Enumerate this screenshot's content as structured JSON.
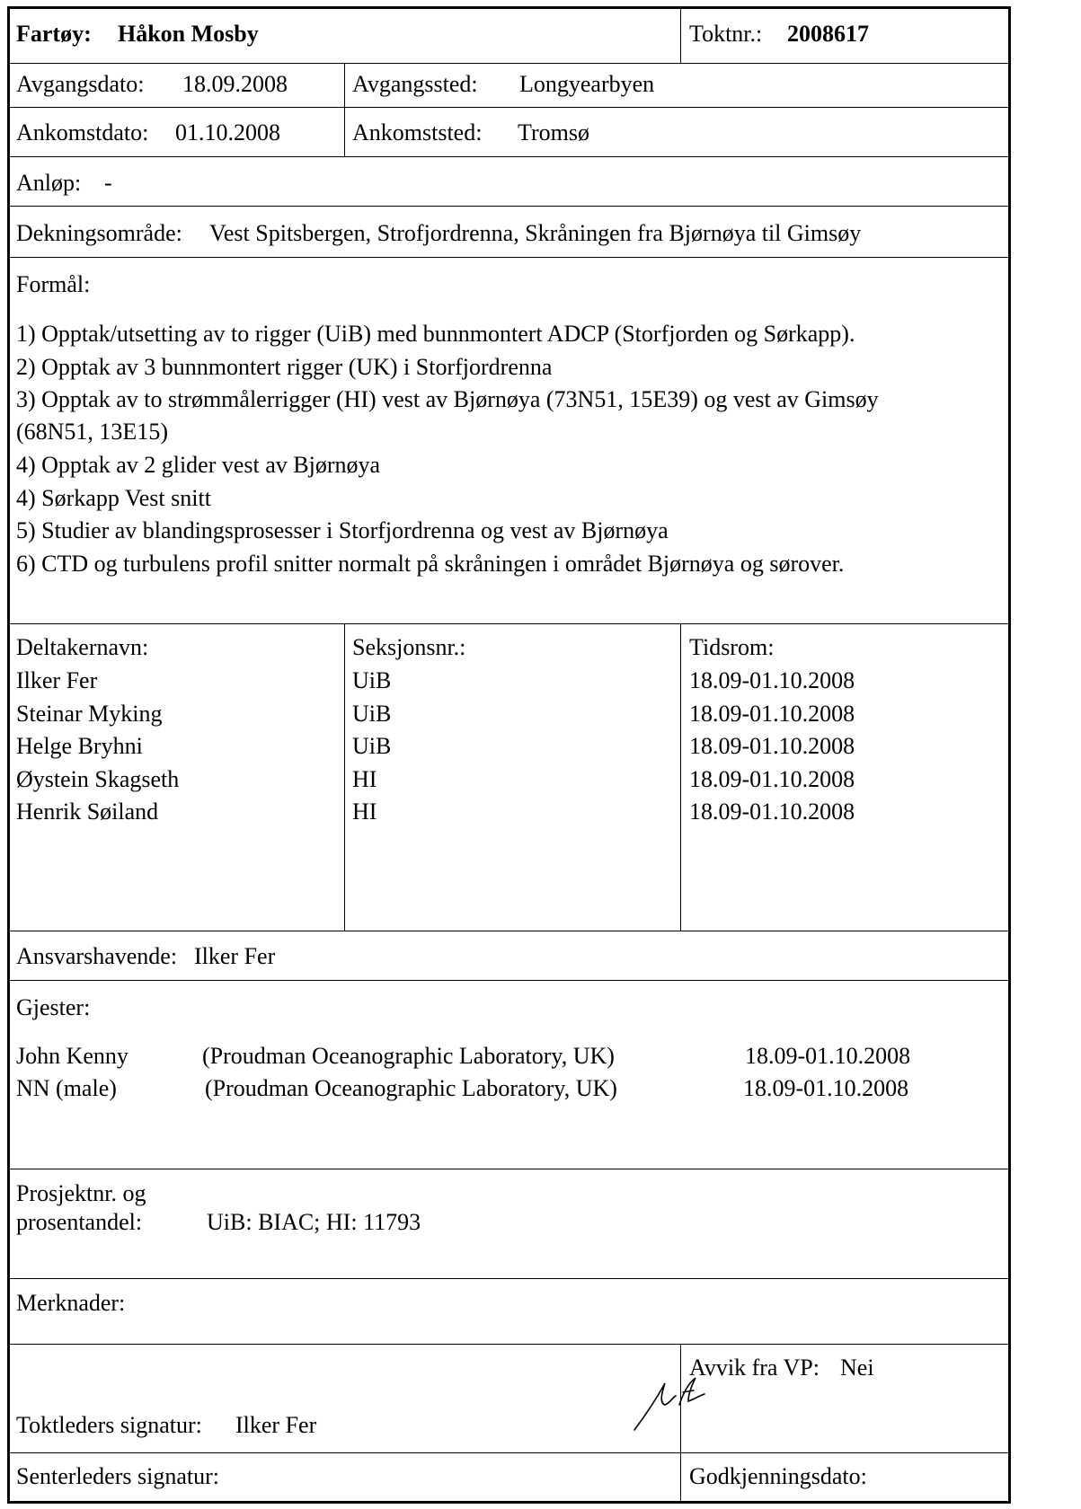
{
  "header": {
    "vessel_label": "Fartøy:",
    "vessel_name": "Håkon Mosby",
    "cruise_label": "Toktnr.:",
    "cruise_no": "2008617"
  },
  "departure": {
    "date_label": "Avgangsdato:",
    "date": "18.09.2008",
    "place_label": "Avgangssted:",
    "place": "Longyearbyen"
  },
  "arrival": {
    "date_label": "Ankomstdato:",
    "date": "01.10.2008",
    "place_label": "Ankomststed:",
    "place": "Tromsø"
  },
  "port_calls": {
    "label": "Anløp:",
    "value": "-"
  },
  "coverage": {
    "label": "Dekningsområde:",
    "value": "Vest Spitsbergen, Strofjordrenna, Skråningen fra Bjørnøya til Gimsøy"
  },
  "purpose": {
    "label": "Formål:",
    "lines": [
      "1) Opptak/utsetting av to rigger (UiB) med bunnmontert ADCP (Storfjorden og Sørkapp).",
      "2) Opptak av 3 bunnmontert rigger (UK) i Storfjordrenna",
      "3) Opptak av to strømmålerrigger (HI) vest av Bjørnøya (73N51, 15E39) og vest av Gimsøy",
      "(68N51, 13E15)",
      "4) Opptak av 2 glider vest av Bjørnøya",
      "4) Sørkapp Vest snitt",
      "5) Studier av blandingsprosesser i Storfjordrenna og vest av Bjørnøya",
      "6) CTD og turbulens profil snitter normalt på skråningen i området Bjørnøya og sørover."
    ]
  },
  "participants": {
    "headers": [
      "Deltakernavn:",
      "Seksjonsnr.:",
      "Tidsrom:"
    ],
    "rows": [
      [
        "Ilker Fer",
        "UiB",
        "18.09-01.10.2008"
      ],
      [
        "Steinar Myking",
        "UiB",
        "18.09-01.10.2008"
      ],
      [
        "Helge Bryhni",
        "UiB",
        "18.09-01.10.2008"
      ],
      [
        "Øystein Skagseth",
        "HI",
        "18.09-01.10.2008"
      ],
      [
        "Henrik Søiland",
        "HI",
        "18.09-01.10.2008"
      ]
    ]
  },
  "responsible": {
    "label": "Ansvarshavende:",
    "value": "Ilker Fer"
  },
  "guests": {
    "label": "Gjester:",
    "rows": [
      [
        "John Kenny",
        "(Proudman Oceanographic Laboratory, UK)",
        "18.09-01.10.2008"
      ],
      [
        "NN (male)",
        "(Proudman Oceanographic Laboratory, UK)",
        "18.09-01.10.2008"
      ]
    ]
  },
  "project": {
    "label_line1": "Prosjektnr. og",
    "label_line2": "prosentandel:",
    "value": "UiB: BIAC; HI: 11793"
  },
  "remarks": {
    "label": "Merknader:",
    "value": ""
  },
  "cruise_leader": {
    "label": "Toktleders signatur:",
    "name": "Ilker Fer"
  },
  "deviation": {
    "label": "Avvik fra VP:",
    "value": "Nei"
  },
  "center_leader": {
    "label": "Senterleders signatur:",
    "value": ""
  },
  "approval": {
    "label": "Godkjenningsdato:",
    "value": ""
  }
}
